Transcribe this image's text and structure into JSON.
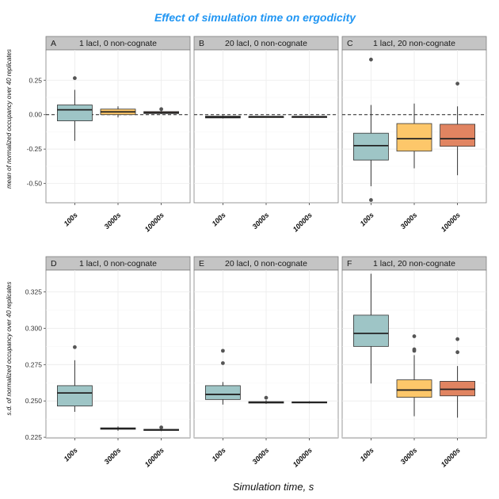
{
  "chart_data": {
    "type": "box",
    "title": "Effect of simulation time on ergodicity",
    "title_color": "#2196F3",
    "xlabel": "Simulation time, s",
    "categories": [
      "100s",
      "3000s",
      "10000s"
    ],
    "colors": {
      "100s": "#9ec5c6",
      "3000s": "#fdc76a",
      "10000s": "#e18461"
    },
    "rows": [
      {
        "ylabel": "mean of normalized occupancy over 40 replicates",
        "ylim": [
          -0.64,
          0.47
        ],
        "yticks": [
          0.25,
          0.0,
          -0.25,
          -0.5
        ],
        "ytick_labels": [
          "0.25",
          "0.00",
          "-0.25",
          "-0.50"
        ],
        "hline": 0.0,
        "panels": [
          {
            "letter": "A",
            "title": "1 lacI, 0 non-cognate",
            "boxes": [
              {
                "category": "100s",
                "lower_whisker": -0.19,
                "q1": -0.045,
                "median": 0.035,
                "q3": 0.07,
                "upper_whisker": 0.18,
                "outliers": [
                  0.265
                ]
              },
              {
                "category": "3000s",
                "lower_whisker": -0.02,
                "q1": 0.0,
                "median": 0.02,
                "q3": 0.04,
                "upper_whisker": 0.06,
                "outliers": []
              },
              {
                "category": "10000s",
                "lower_whisker": 0.005,
                "q1": 0.008,
                "median": 0.015,
                "q3": 0.022,
                "upper_whisker": 0.03,
                "outliers": [
                  0.04
                ]
              }
            ]
          },
          {
            "letter": "B",
            "title": "20 lacI, 0 non-cognate",
            "boxes": [
              {
                "category": "100s",
                "lower_whisker": -0.028,
                "q1": -0.024,
                "median": -0.018,
                "q3": -0.011,
                "upper_whisker": -0.005,
                "outliers": []
              },
              {
                "category": "3000s",
                "lower_whisker": -0.018,
                "q1": -0.016,
                "median": -0.015,
                "q3": -0.013,
                "upper_whisker": -0.011,
                "outliers": []
              },
              {
                "category": "10000s",
                "lower_whisker": -0.018,
                "q1": -0.016,
                "median": -0.015,
                "q3": -0.013,
                "upper_whisker": -0.011,
                "outliers": []
              }
            ]
          },
          {
            "letter": "C",
            "title": "1 lacI, 20 non-cognate",
            "boxes": [
              {
                "category": "100s",
                "lower_whisker": -0.52,
                "q1": -0.33,
                "median": -0.225,
                "q3": -0.135,
                "upper_whisker": 0.07,
                "outliers": [
                  0.4,
                  -0.62
                ]
              },
              {
                "category": "3000s",
                "lower_whisker": -0.39,
                "q1": -0.265,
                "median": -0.175,
                "q3": -0.065,
                "upper_whisker": 0.08,
                "outliers": []
              },
              {
                "category": "10000s",
                "lower_whisker": -0.44,
                "q1": -0.23,
                "median": -0.175,
                "q3": -0.07,
                "upper_whisker": 0.06,
                "outliers": [
                  0.225
                ]
              }
            ]
          }
        ]
      },
      {
        "ylabel": "s.d. of normalized occupancy over 40 replicates",
        "ylim": [
          0.2245,
          0.34
        ],
        "yticks": [
          0.325,
          0.3,
          0.275,
          0.25,
          0.225
        ],
        "ytick_labels": [
          "0.325",
          "0.300",
          "0.275",
          "0.250",
          "0.225"
        ],
        "hline": null,
        "panels": [
          {
            "letter": "D",
            "title": "1 lacI, 0 non-cognate",
            "boxes": [
              {
                "category": "100s",
                "lower_whisker": 0.2425,
                "q1": 0.2465,
                "median": 0.2555,
                "q3": 0.2605,
                "upper_whisker": 0.278,
                "outliers": [
                  0.287
                ]
              },
              {
                "category": "3000s",
                "lower_whisker": 0.2295,
                "q1": 0.2305,
                "median": 0.231,
                "q3": 0.2315,
                "upper_whisker": 0.2325,
                "outliers": []
              },
              {
                "category": "10000s",
                "lower_whisker": 0.2292,
                "q1": 0.2297,
                "median": 0.2301,
                "q3": 0.2305,
                "upper_whisker": 0.2312,
                "outliers": [
                  0.2318
                ]
              }
            ]
          },
          {
            "letter": "E",
            "title": "20 lacI, 0 non-cognate",
            "boxes": [
              {
                "category": "100s",
                "lower_whisker": 0.2475,
                "q1": 0.251,
                "median": 0.2545,
                "q3": 0.2605,
                "upper_whisker": 0.263,
                "outliers": [
                  0.2845,
                  0.276
                ]
              },
              {
                "category": "3000s",
                "lower_whisker": 0.248,
                "q1": 0.2485,
                "median": 0.249,
                "q3": 0.2495,
                "upper_whisker": 0.2505,
                "outliers": [
                  0.2522
                ]
              },
              {
                "category": "10000s",
                "lower_whisker": 0.2483,
                "q1": 0.2486,
                "median": 0.249,
                "q3": 0.2494,
                "upper_whisker": 0.2498,
                "outliers": []
              }
            ]
          },
          {
            "letter": "F",
            "title": "1 lacI, 20 non-cognate",
            "boxes": [
              {
                "category": "100s",
                "lower_whisker": 0.262,
                "q1": 0.2875,
                "median": 0.2965,
                "q3": 0.309,
                "upper_whisker": 0.3375,
                "outliers": []
              },
              {
                "category": "3000s",
                "lower_whisker": 0.2395,
                "q1": 0.2525,
                "median": 0.2575,
                "q3": 0.2645,
                "upper_whisker": 0.2815,
                "outliers": [
                  0.2945,
                  0.2855,
                  0.2845
                ]
              },
              {
                "category": "10000s",
                "lower_whisker": 0.2385,
                "q1": 0.2535,
                "median": 0.258,
                "q3": 0.2635,
                "upper_whisker": 0.274,
                "outliers": [
                  0.2925,
                  0.2835
                ]
              }
            ]
          }
        ]
      }
    ]
  }
}
